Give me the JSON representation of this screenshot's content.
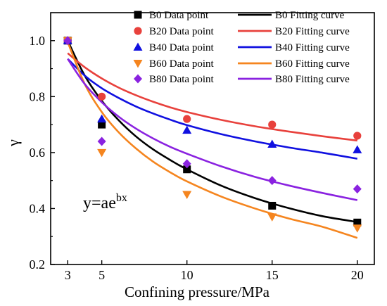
{
  "chart_data": {
    "type": "scatter",
    "title": "",
    "xlabel": "Confining pressure/MPa",
    "ylabel": "γ",
    "xlim": [
      2,
      21
    ],
    "ylim": [
      0.2,
      1.1
    ],
    "xticks": [
      3,
      5,
      10,
      15,
      20
    ],
    "yticks": [
      0.2,
      0.4,
      0.6,
      0.8,
      1.0
    ],
    "grid": false,
    "legend_position": "top-right",
    "annotation": {
      "base": "y=ae",
      "exponent": "bx"
    },
    "series": [
      {
        "name": "B0",
        "point_label": "B0   Data point",
        "curve_label": "B0   Fitting curve",
        "marker": "square",
        "color": "#000000",
        "x": [
          3,
          5,
          10,
          15,
          20
        ],
        "y": [
          1.0,
          0.7,
          0.54,
          0.41,
          0.35
        ],
        "fit": [
          [
            3,
            1.0
          ],
          [
            4,
            0.875
          ],
          [
            5,
            0.785
          ],
          [
            6,
            0.715
          ],
          [
            7,
            0.658
          ],
          [
            8,
            0.612
          ],
          [
            9,
            0.574
          ],
          [
            10,
            0.54
          ],
          [
            12,
            0.482
          ],
          [
            14,
            0.437
          ],
          [
            16,
            0.401
          ],
          [
            18,
            0.372
          ],
          [
            20,
            0.352
          ]
        ]
      },
      {
        "name": "B20",
        "point_label": "B20  Data point",
        "curve_label": "B20  Fitting curve",
        "marker": "circle",
        "color": "#e8413c",
        "x": [
          3,
          5,
          10,
          15,
          20
        ],
        "y": [
          1.0,
          0.8,
          0.72,
          0.7,
          0.66
        ],
        "fit": [
          [
            3,
            0.955
          ],
          [
            4,
            0.905
          ],
          [
            5,
            0.865
          ],
          [
            6,
            0.832
          ],
          [
            7,
            0.805
          ],
          [
            8,
            0.782
          ],
          [
            9,
            0.762
          ],
          [
            10,
            0.745
          ],
          [
            12,
            0.717
          ],
          [
            14,
            0.694
          ],
          [
            16,
            0.675
          ],
          [
            18,
            0.658
          ],
          [
            20,
            0.643
          ]
        ]
      },
      {
        "name": "B40",
        "point_label": "B40  Data point",
        "curve_label": "B40  Fitting curve",
        "marker": "triangle-up",
        "color": "#1010e0",
        "x": [
          3,
          5,
          10,
          15,
          20
        ],
        "y": [
          1.0,
          0.72,
          0.68,
          0.63,
          0.61
        ],
        "fit": [
          [
            3,
            0.935
          ],
          [
            4,
            0.875
          ],
          [
            5,
            0.83
          ],
          [
            6,
            0.795
          ],
          [
            7,
            0.765
          ],
          [
            8,
            0.74
          ],
          [
            9,
            0.718
          ],
          [
            10,
            0.698
          ],
          [
            12,
            0.666
          ],
          [
            14,
            0.64
          ],
          [
            16,
            0.618
          ],
          [
            18,
            0.599
          ],
          [
            20,
            0.578
          ]
        ]
      },
      {
        "name": "B60",
        "point_label": "B60  Data point",
        "curve_label": "B60  Fitting curve",
        "marker": "triangle-down",
        "color": "#f5851f",
        "x": [
          3,
          5,
          10,
          15,
          20
        ],
        "y": [
          1.0,
          0.6,
          0.45,
          0.37,
          0.33
        ],
        "fit": [
          [
            3,
            0.995
          ],
          [
            4,
            0.845
          ],
          [
            5,
            0.745
          ],
          [
            6,
            0.672
          ],
          [
            7,
            0.615
          ],
          [
            8,
            0.568
          ],
          [
            9,
            0.53
          ],
          [
            10,
            0.497
          ],
          [
            12,
            0.443
          ],
          [
            14,
            0.4
          ],
          [
            16,
            0.364
          ],
          [
            18,
            0.334
          ],
          [
            20,
            0.295
          ]
        ]
      },
      {
        "name": "B80",
        "point_label": "B80  Data point",
        "curve_label": "B80  Fitting curve",
        "marker": "diamond",
        "color": "#8a22e0",
        "x": [
          3,
          5,
          10,
          15,
          20
        ],
        "y": [
          1.0,
          0.64,
          0.56,
          0.5,
          0.47
        ],
        "fit": [
          [
            3,
            0.935
          ],
          [
            4,
            0.845
          ],
          [
            5,
            0.78
          ],
          [
            6,
            0.728
          ],
          [
            7,
            0.686
          ],
          [
            8,
            0.651
          ],
          [
            9,
            0.621
          ],
          [
            10,
            0.596
          ],
          [
            12,
            0.551
          ],
          [
            14,
            0.513
          ],
          [
            16,
            0.482
          ],
          [
            18,
            0.455
          ],
          [
            20,
            0.43
          ]
        ]
      }
    ]
  }
}
